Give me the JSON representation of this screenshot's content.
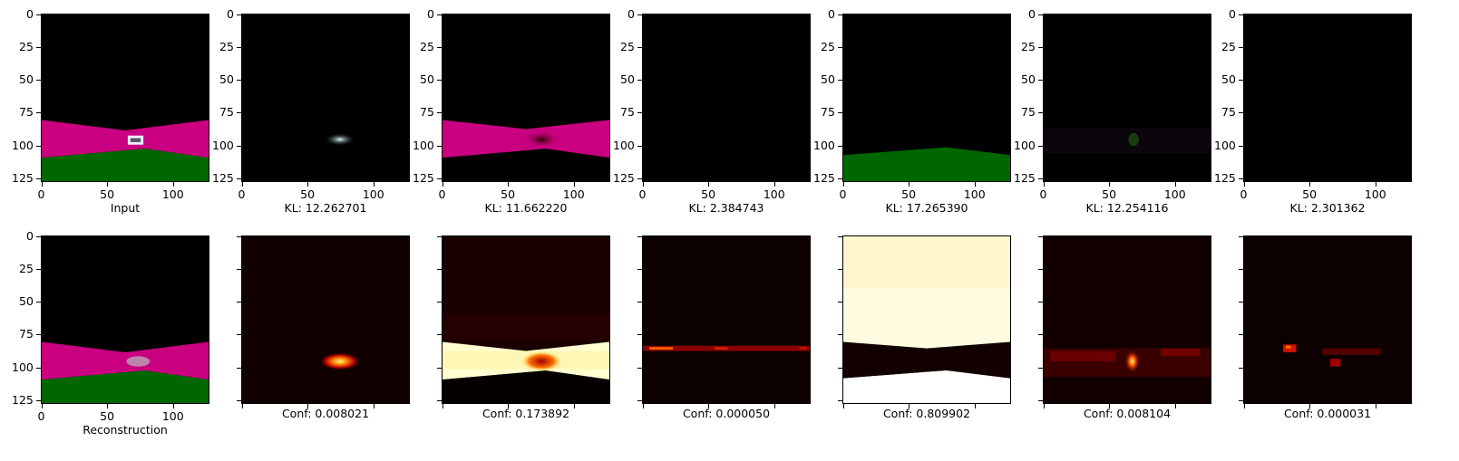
{
  "axis": {
    "y_ticks": [
      "0",
      "25",
      "50",
      "75",
      "100",
      "125"
    ],
    "x_ticks": [
      "0",
      "50",
      "100"
    ]
  },
  "top_row": [
    {
      "caption": "Input",
      "scene": "input"
    },
    {
      "caption": "KL: 12.262701",
      "scene": "car-blob"
    },
    {
      "caption": "KL: 11.662220",
      "scene": "road-dark-car"
    },
    {
      "caption": "KL: 2.384743",
      "scene": "black"
    },
    {
      "caption": "KL: 17.265390",
      "scene": "grass-only"
    },
    {
      "caption": "KL: 12.254116",
      "scene": "faint-green"
    },
    {
      "caption": "KL: 2.301362",
      "scene": "black"
    }
  ],
  "bottom_row": [
    {
      "caption": "Reconstruction",
      "scene": "reconstruction"
    },
    {
      "caption": "Conf: 0.008021",
      "scene": "heat-car"
    },
    {
      "caption": "Conf: 0.173892",
      "scene": "heat-road"
    },
    {
      "caption": "Conf: 0.000050",
      "scene": "heat-edge"
    },
    {
      "caption": "Conf: 0.809902",
      "scene": "heat-inverse"
    },
    {
      "caption": "Conf: 0.008104",
      "scene": "heat-band"
    },
    {
      "caption": "Conf: 0.000031",
      "scene": "heat-specks"
    }
  ],
  "colors": {
    "road": "#c9007f",
    "grass": "#006600",
    "hot": "#ffffd0"
  }
}
